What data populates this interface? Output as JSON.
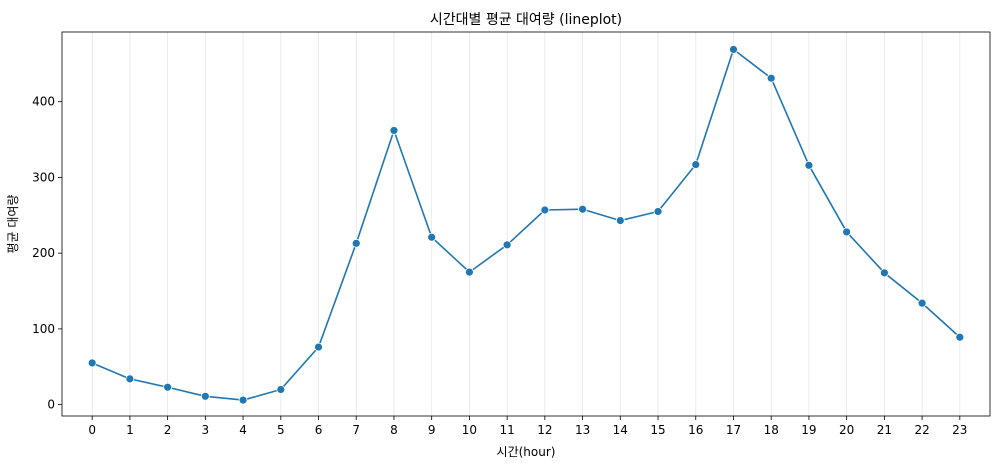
{
  "chart_data": {
    "type": "line",
    "title": "시간대별 평균 대여량 (lineplot)",
    "xlabel": "시간(hour)",
    "ylabel": "평균 대여량",
    "x": [
      0,
      1,
      2,
      3,
      4,
      5,
      6,
      7,
      8,
      9,
      10,
      11,
      12,
      13,
      14,
      15,
      16,
      17,
      18,
      19,
      20,
      21,
      22,
      23
    ],
    "series": [
      {
        "values": [
          55,
          34,
          23,
          11,
          6,
          20,
          76,
          213,
          362,
          221,
          175,
          211,
          257,
          258,
          243,
          255,
          317,
          469,
          431,
          316,
          228,
          174,
          134,
          89
        ]
      }
    ],
    "yticks": [
      0,
      100,
      200,
      300,
      400
    ],
    "ylim": [
      -15,
      492
    ],
    "xlim": [
      -0.8,
      23.8
    ],
    "grid": "vertical",
    "line_color": "#1f77b4",
    "grid_color": "#e6e6e6"
  }
}
